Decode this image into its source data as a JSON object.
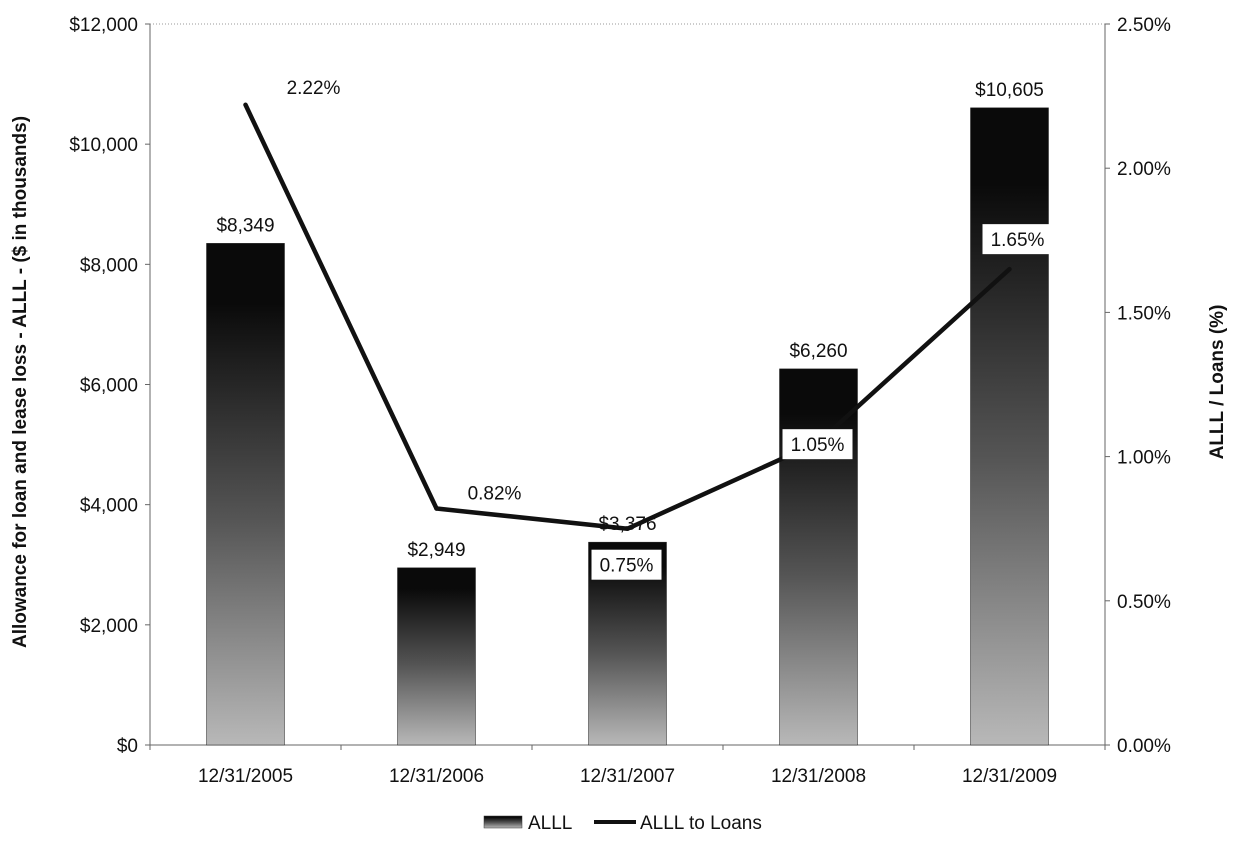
{
  "chart_data": {
    "type": "bar",
    "title": "",
    "categories": [
      "12/31/2005",
      "12/31/2006",
      "12/31/2007",
      "12/31/2008",
      "12/31/2009"
    ],
    "series": [
      {
        "name": "ALLL",
        "type": "bar",
        "axis": "left",
        "values": [
          8349,
          2949,
          3376,
          6260,
          10605
        ],
        "labels": [
          "$8,349",
          "$2,949",
          "$3,376",
          "$6,260",
          "$10,605"
        ]
      },
      {
        "name": "ALLL to Loans",
        "type": "line",
        "axis": "right",
        "values": [
          2.22,
          0.82,
          0.75,
          1.05,
          1.65
        ],
        "labels": [
          "2.22%",
          "0.82%",
          "0.75%",
          "1.05%",
          "1.65%"
        ]
      }
    ],
    "ylabel": "Allowance for loan and lease loss - ALLL - ($ in thousands)",
    "y2label": "ALLL / Loans  (%)",
    "ylim": [
      0,
      12000
    ],
    "y2lim": [
      0,
      2.5
    ],
    "yticks": [
      "$0",
      "$2,000",
      "$4,000",
      "$6,000",
      "$8,000",
      "$10,000",
      "$12,000"
    ],
    "y2ticks": [
      "0.00%",
      "0.50%",
      "1.00%",
      "1.50%",
      "2.00%",
      "2.50%"
    ],
    "grid": false,
    "legend_position": "bottom"
  },
  "colors": {
    "bar_top": "#0a0a0a",
    "bar_bottom": "#b8b8b8",
    "line": "#111111"
  }
}
